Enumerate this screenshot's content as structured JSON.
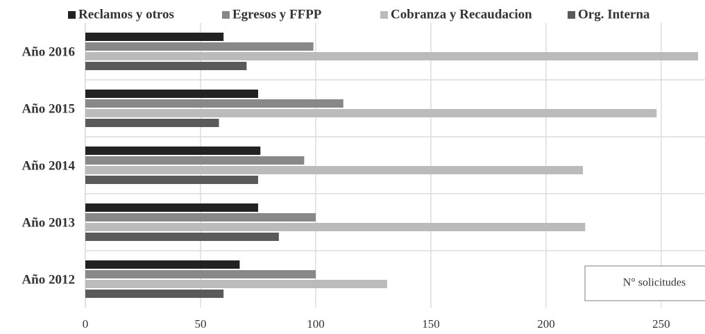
{
  "chart_data": {
    "type": "hbar",
    "categories": [
      "Año 2016",
      "Año 2015",
      "Año 2014",
      "Año 2013",
      "Año 2012"
    ],
    "series": [
      {
        "name": "Reclamos y otros",
        "color": "#222222",
        "values": [
          60,
          75,
          76,
          75,
          67
        ]
      },
      {
        "name": "Egresos y FFPP",
        "color": "#888888",
        "values": [
          99,
          112,
          95,
          100,
          100
        ]
      },
      {
        "name": "Cobranza y Recaudacion",
        "color": "#bbbbbb",
        "values": [
          266,
          248,
          216,
          217,
          131
        ]
      },
      {
        "name": "Org. Interna",
        "color": "#5a5a5a",
        "values": [
          70,
          58,
          75,
          84,
          60
        ]
      }
    ],
    "xlim": [
      0,
      269
    ],
    "xticks": [
      0,
      50,
      100,
      150,
      200,
      250
    ],
    "grid": true,
    "legend": "top",
    "annotation": "N° solicitudes"
  }
}
